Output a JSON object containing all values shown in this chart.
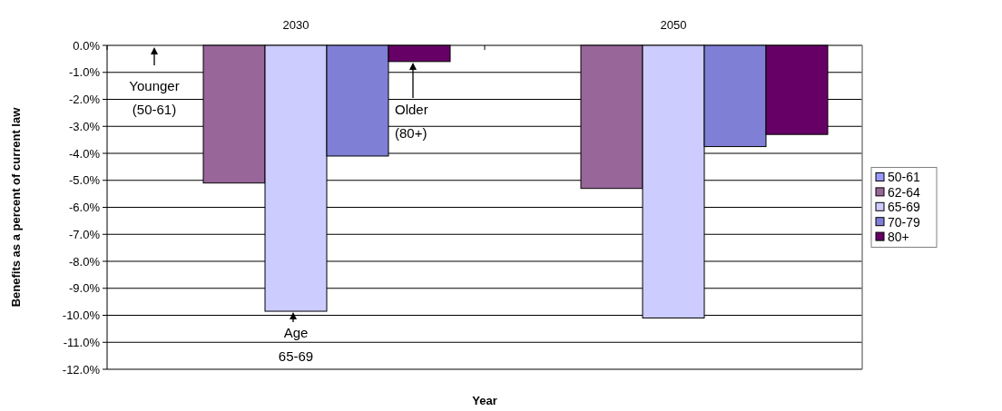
{
  "chart_data": {
    "type": "bar",
    "categories": [
      "2030",
      "2050"
    ],
    "series": [
      {
        "name": "50-61",
        "color": "#9999ff",
        "values": [
          0,
          0
        ]
      },
      {
        "name": "62-64",
        "color": "#996699",
        "values": [
          -5.1,
          -5.3
        ]
      },
      {
        "name": "65-69",
        "color": "#ccccff",
        "values": [
          -9.85,
          -10.1
        ]
      },
      {
        "name": "70-79",
        "color": "#7f7fd6",
        "values": [
          -4.1,
          -3.75
        ]
      },
      {
        "name": "80+",
        "color": "#660066",
        "values": [
          -0.6,
          -3.3
        ]
      }
    ],
    "ylim": [
      -12,
      0
    ],
    "yticks": [
      {
        "value": 0,
        "label": "0.0%"
      },
      {
        "value": -1,
        "label": "-1.0%"
      },
      {
        "value": -2,
        "label": "-2.0%"
      },
      {
        "value": -3,
        "label": "-3.0%"
      },
      {
        "value": -4,
        "label": "-4.0%"
      },
      {
        "value": -5,
        "label": "-5.0%"
      },
      {
        "value": -6,
        "label": "-6.0%"
      },
      {
        "value": -7,
        "label": "-7.0%"
      },
      {
        "value": -8,
        "label": "-8.0%"
      },
      {
        "value": -9,
        "label": "-9.0%"
      },
      {
        "value": -10,
        "label": "-10.0%"
      },
      {
        "value": -11,
        "label": "-11.0%"
      },
      {
        "value": -12,
        "label": "-12.0%"
      }
    ],
    "ylabel": "Benefits as a percent of current law",
    "xlabel": "Year",
    "grid": "y",
    "legend": "right",
    "annotations": [
      "Younger\n(50-61)",
      "Age\n65-69",
      "Older\n(80+)"
    ]
  }
}
